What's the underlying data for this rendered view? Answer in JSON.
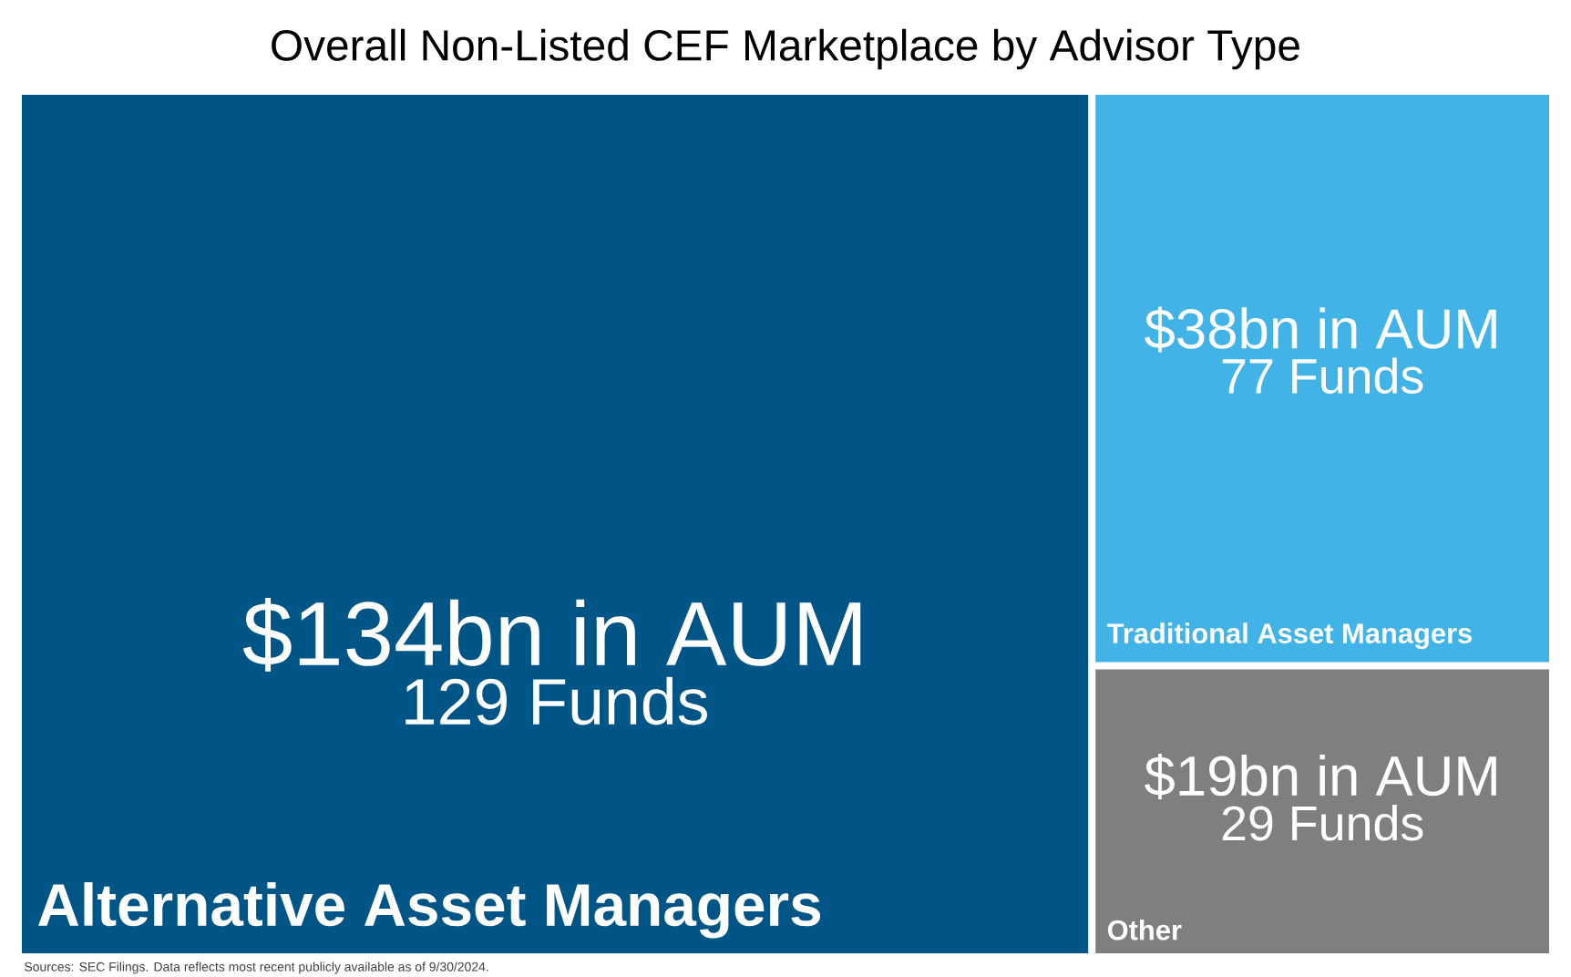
{
  "chart_data": {
    "type": "other",
    "title": "Overall Non-Listed CEF Marketplace by Advisor Type",
    "categories": [
      "Alternative Asset Managers",
      "Traditional Asset Managers",
      "Other"
    ],
    "series": [
      {
        "colors": [
          "#005587",
          "#41b3e6",
          "#7f7f7f"
        ],
        "values": [
          134,
          38,
          19
        ],
        "value_labels": [
          "$134bn in AUM",
          "$38bn in AUM",
          "$19bn in AUM"
        ]
      },
      {
        "values": [
          129,
          77,
          29
        ],
        "value_labels": [
          "129 Funds",
          "77 Funds",
          "29 Funds"
        ]
      }
    ],
    "annotations": [
      "Sources: SEC Filings. Data reflects most recent publicly available as of 9/30/2024."
    ]
  }
}
